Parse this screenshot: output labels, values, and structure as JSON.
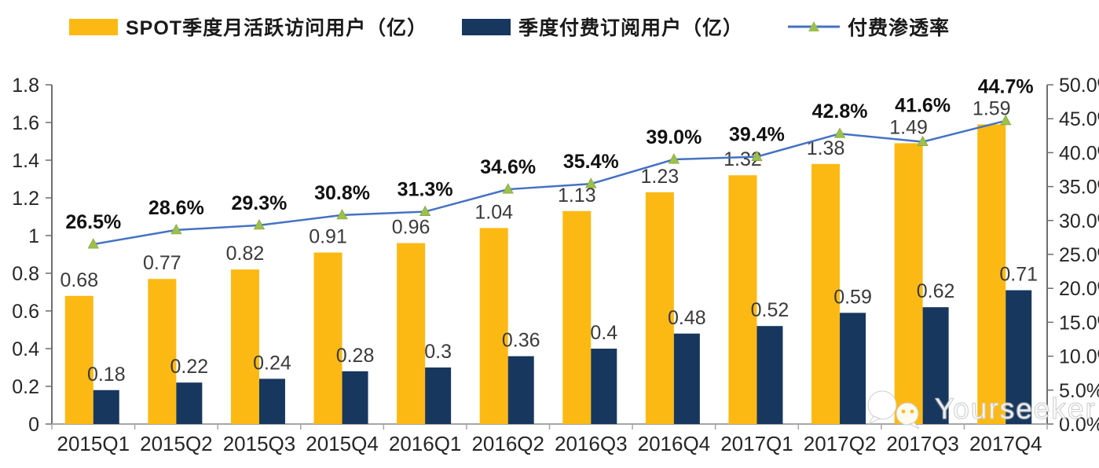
{
  "legend": {
    "items": [
      {
        "label": "SPOT季度月活跃访问用户（亿）",
        "swatch_color": "#FDB913"
      },
      {
        "label": "季度付费订阅用户（亿）",
        "swatch_color": "#17375E"
      },
      {
        "label": "付费渗透率",
        "line_color": "#4472C4",
        "marker_color": "#9DC04B"
      }
    ]
  },
  "watermark": {
    "text": "Yourseeker",
    "icon": "wechat-icon"
  },
  "chart_data": {
    "type": "bar+line",
    "title": "",
    "categories": [
      "2015Q1",
      "2015Q2",
      "2015Q3",
      "2015Q4",
      "2016Q1",
      "2016Q2",
      "2016Q3",
      "2016Q4",
      "2017Q1",
      "2017Q2",
      "2017Q3",
      "2017Q4"
    ],
    "series": [
      {
        "name": "SPOT季度月活跃访问用户（亿）",
        "type": "bar",
        "axis": "left",
        "color": "#FDB913",
        "values": [
          0.68,
          0.77,
          0.82,
          0.91,
          0.96,
          1.04,
          1.13,
          1.23,
          1.32,
          1.38,
          1.49,
          1.59
        ],
        "labels": [
          "0.68",
          "0.77",
          "0.82",
          "0.91",
          "0.96",
          "1.04",
          "1.13",
          "1.23",
          "1.32",
          "1.38",
          "1.49",
          "1.59"
        ]
      },
      {
        "name": "季度付费订阅用户（亿）",
        "type": "bar",
        "axis": "left",
        "color": "#17375E",
        "values": [
          0.18,
          0.22,
          0.24,
          0.28,
          0.3,
          0.36,
          0.4,
          0.48,
          0.52,
          0.59,
          0.62,
          0.71
        ],
        "labels": [
          "0.18",
          "0.22",
          "0.24",
          "0.28",
          "0.3",
          "0.36",
          "0.4",
          "0.48",
          "0.52",
          "0.59",
          "0.62",
          "0.71"
        ]
      },
      {
        "name": "付费渗透率",
        "type": "line",
        "axis": "right",
        "color": "#4472C4",
        "marker": "triangle",
        "marker_color": "#9DC04B",
        "values": [
          26.5,
          28.6,
          29.3,
          30.8,
          31.3,
          34.6,
          35.4,
          39.0,
          39.4,
          42.8,
          41.6,
          44.7
        ],
        "labels": [
          "26.5%",
          "28.6%",
          "29.3%",
          "30.8%",
          "31.3%",
          "34.6%",
          "35.4%",
          "39.0%",
          "39.4%",
          "42.8%",
          "41.6%",
          "44.7%"
        ]
      }
    ],
    "left_axis": {
      "min": 0,
      "max": 1.8,
      "step": 0.2,
      "ticks": [
        "0",
        "0.2",
        "0.4",
        "0.6",
        "0.8",
        "1",
        "1.2",
        "1.4",
        "1.6",
        "1.8"
      ]
    },
    "right_axis": {
      "min": 0,
      "max": 50,
      "step": 5,
      "ticks": [
        "0.0%",
        "5.0%",
        "10.0%",
        "15.0%",
        "20.0%",
        "25.0%",
        "30.0%",
        "35.0%",
        "40.0%",
        "45.0%",
        "50.0%"
      ]
    },
    "grid": false,
    "legend_position": "top",
    "value_label_color": "#3a3a3a",
    "percent_label_color": "#111111",
    "axis_color": "#6e6e6e",
    "baseline_color": "#a6a6a6",
    "tick_label_color": "#262626"
  }
}
